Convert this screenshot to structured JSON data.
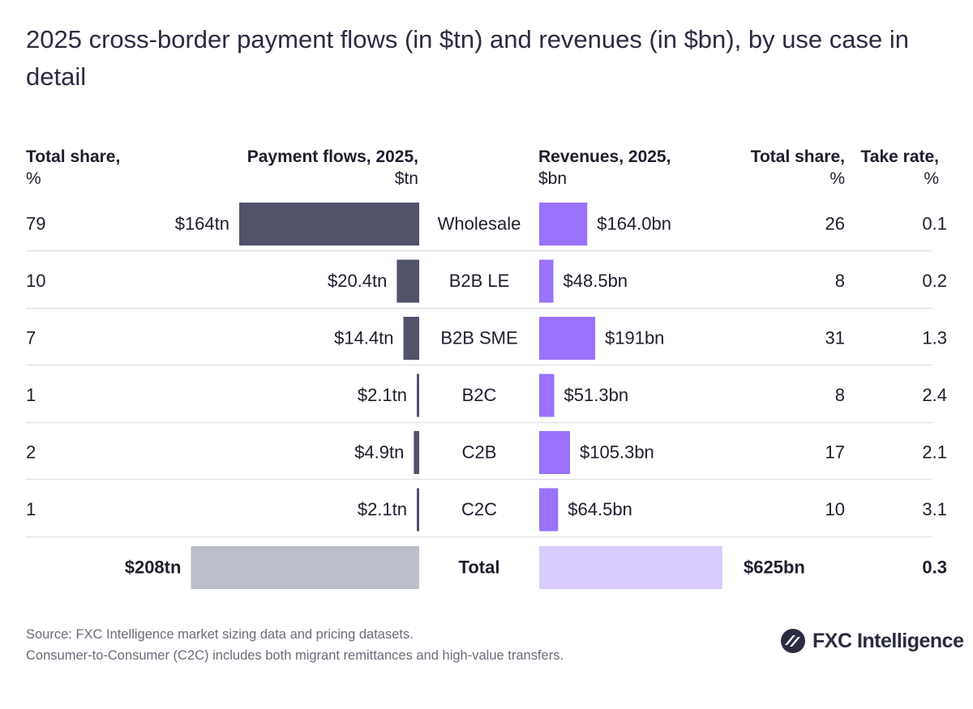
{
  "title": "2025 cross-border payment flows (in $tn) and revenues (in $bn), by use case in detail",
  "headers": {
    "flow_share": {
      "line1": "Total share,",
      "line2": "%"
    },
    "flows": {
      "line1": "Payment flows, 2025,",
      "line2": "$tn"
    },
    "revenues": {
      "line1": "Revenues, 2025,",
      "line2": "$bn"
    },
    "rev_share": {
      "line1": "Total share,",
      "line2": "%"
    },
    "take_rate": {
      "line1": "Take rate,",
      "line2": "%"
    }
  },
  "colors": {
    "flow_bar": "#50536a",
    "revenue_bar": "#9a72fb",
    "total_flow_bar": "#bcbfc9",
    "total_revenue_bar": "#d9cbfc",
    "divider": "#e2e2e8"
  },
  "chart_data": {
    "type": "table",
    "rows": [
      {
        "category": "Wholesale",
        "flow_share": "79",
        "flow": 164,
        "flow_label": "$164tn",
        "revenue": 164.0,
        "revenue_label": "$164.0bn",
        "revenue_share": "26",
        "take_rate": "0.1"
      },
      {
        "category": "B2B LE",
        "flow_share": "10",
        "flow": 20.4,
        "flow_label": "$20.4tn",
        "revenue": 48.5,
        "revenue_label": "$48.5bn",
        "revenue_share": "8",
        "take_rate": "0.2"
      },
      {
        "category": "B2B SME",
        "flow_share": "7",
        "flow": 14.4,
        "flow_label": "$14.4tn",
        "revenue": 191,
        "revenue_label": "$191bn",
        "revenue_share": "31",
        "take_rate": "1.3"
      },
      {
        "category": "B2C",
        "flow_share": "1",
        "flow": 2.1,
        "flow_label": "$2.1tn",
        "revenue": 51.3,
        "revenue_label": "$51.3bn",
        "revenue_share": "8",
        "take_rate": "2.4"
      },
      {
        "category": "C2B",
        "flow_share": "2",
        "flow": 4.9,
        "flow_label": "$4.9tn",
        "revenue": 105.3,
        "revenue_label": "$105.3bn",
        "revenue_share": "17",
        "take_rate": "2.1"
      },
      {
        "category": "C2C",
        "flow_share": "1",
        "flow": 2.1,
        "flow_label": "$2.1tn",
        "revenue": 64.5,
        "revenue_label": "$64.5bn",
        "revenue_share": "10",
        "take_rate": "3.1"
      }
    ],
    "total": {
      "category": "Total",
      "flow": 208,
      "flow_label": "$208tn",
      "revenue": 625,
      "revenue_label": "$625bn",
      "take_rate": "0.3"
    }
  },
  "footer": {
    "source": "Source: FXC Intelligence market sizing data and pricing datasets.",
    "note": "Consumer-to-Consumer (C2C) includes both migrant remittances and high-value transfers."
  },
  "logo": {
    "text": "FXC Intelligence",
    "icon": "fxc-logo-icon"
  }
}
